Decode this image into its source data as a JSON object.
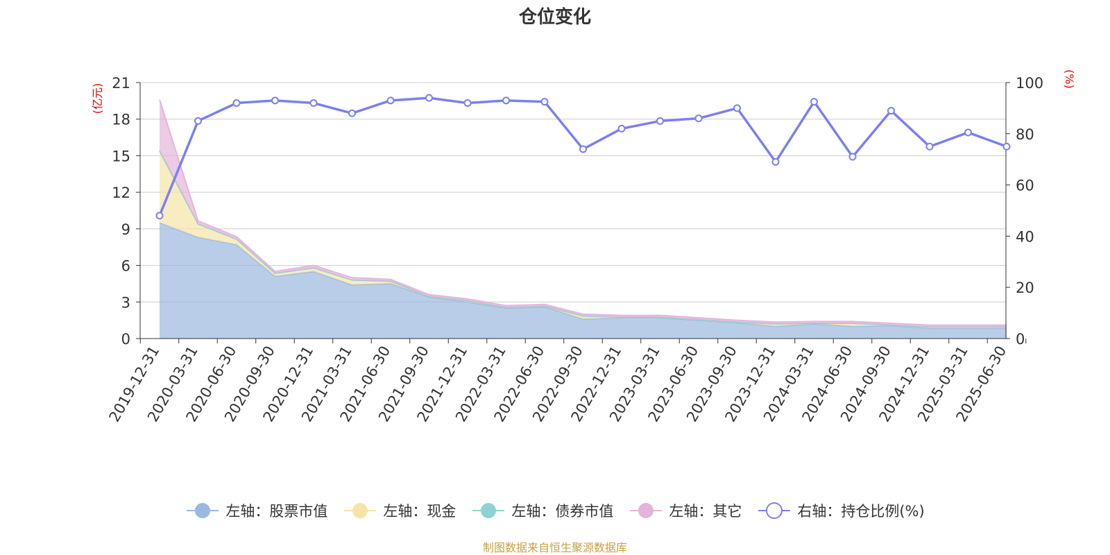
{
  "title": "仓位变化",
  "source_note": "制图数据来自恒生聚源数据库",
  "colors": {
    "stock": "#9bb8e0",
    "cash": "#f5e4a6",
    "bond": "#8dd3d3",
    "other": "#e6b4da",
    "ratio": "#7b7ff0",
    "axis_unit": "#e60000",
    "source": "#c8a040",
    "grid": "#cccccc",
    "axis": "#333333"
  },
  "chart_data": {
    "type": "area",
    "title": "仓位变化",
    "left_axis": {
      "unit": "(亿元)",
      "ylim": [
        0,
        21
      ],
      "ticks": [
        0,
        3,
        6,
        9,
        12,
        15,
        18,
        21
      ]
    },
    "right_axis": {
      "unit": "(%)",
      "ylim": [
        0,
        100
      ],
      "ticks": [
        0,
        20,
        40,
        60,
        80,
        100
      ]
    },
    "categories": [
      "2019-12-31",
      "2020-03-31",
      "2020-06-30",
      "2020-09-30",
      "2020-12-31",
      "2021-03-31",
      "2021-06-30",
      "2021-09-30",
      "2021-12-31",
      "2022-03-31",
      "2022-06-30",
      "2022-09-30",
      "2022-12-31",
      "2023-03-31",
      "2023-06-30",
      "2023-09-30",
      "2023-12-31",
      "2024-03-31",
      "2024-06-30",
      "2024-09-30",
      "2024-12-31",
      "2025-03-31",
      "2025-06-30"
    ],
    "series": [
      {
        "name": "左轴：股票市值",
        "axis": "left",
        "kind": "area",
        "color_key": "stock",
        "values": [
          9.5,
          8.3,
          7.7,
          5.1,
          5.5,
          4.4,
          4.5,
          3.4,
          3.0,
          2.5,
          2.6,
          1.6,
          1.7,
          1.7,
          1.5,
          1.3,
          1.0,
          1.2,
          1.0,
          1.05,
          0.85,
          0.85,
          0.85
        ]
      },
      {
        "name": "左轴：现金",
        "axis": "left",
        "kind": "area",
        "color_key": "cash",
        "values": [
          5.9,
          1.1,
          0.45,
          0.25,
          0.3,
          0.4,
          0.2,
          0.05,
          0.1,
          0.05,
          0.05,
          0.25,
          0.05,
          0.05,
          0.05,
          0.05,
          0.2,
          0.05,
          0.25,
          0.05,
          0.1,
          0.1,
          0.1
        ]
      },
      {
        "name": "左轴：债券市值",
        "axis": "left",
        "kind": "area",
        "color_key": "bond",
        "values": [
          0,
          0,
          0,
          0,
          0,
          0,
          0,
          0,
          0,
          0,
          0,
          0,
          0,
          0,
          0,
          0,
          0,
          0,
          0,
          0,
          0,
          0,
          0
        ]
      },
      {
        "name": "左轴：其它",
        "axis": "left",
        "kind": "area",
        "color_key": "other",
        "values": [
          4.2,
          0.25,
          0.2,
          0.15,
          0.2,
          0.2,
          0.15,
          0.15,
          0.15,
          0.15,
          0.15,
          0.15,
          0.15,
          0.15,
          0.15,
          0.15,
          0.15,
          0.15,
          0.15,
          0.15,
          0.15,
          0.15,
          0.15
        ]
      },
      {
        "name": "右轴：持仓比例(%)",
        "axis": "right",
        "kind": "line",
        "color_key": "ratio",
        "values": [
          48,
          85,
          92,
          93,
          92,
          88,
          93,
          94,
          92,
          93,
          92.5,
          74,
          82,
          85,
          86,
          90,
          69,
          92.5,
          71,
          89,
          75,
          80.5,
          75
        ]
      }
    ],
    "grid": true,
    "legend_position": "bottom"
  }
}
